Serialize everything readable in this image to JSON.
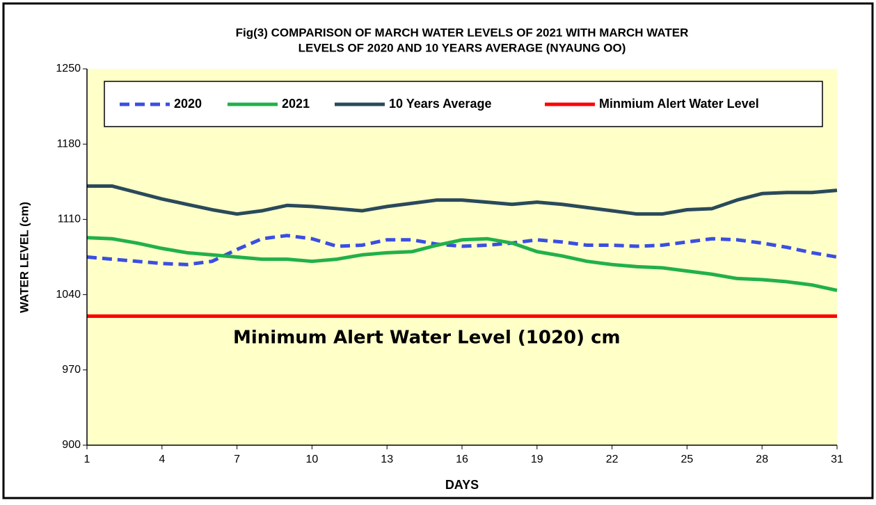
{
  "chart_data": {
    "type": "line",
    "title": [
      "Fig(3)  COMPARISON OF MARCH WATER  LEVELS OF 2021 WITH  MARCH WATER",
      "LEVELS OF 2020  AND 10 YEARS   AVERAGE   (NYAUNG OO)"
    ],
    "x_label": "DAYS",
    "y_label": "WATER LEVEL (cm)",
    "annotation": "Minimum  Alert Water  Level (1020) cm",
    "legend": "top",
    "x": [
      1,
      2,
      3,
      4,
      5,
      6,
      7,
      8,
      9,
      10,
      11,
      12,
      13,
      14,
      15,
      16,
      17,
      18,
      19,
      20,
      21,
      22,
      23,
      24,
      25,
      26,
      27,
      28,
      29,
      30,
      31
    ],
    "xlim": [
      1,
      31
    ],
    "xticks": [
      1,
      4,
      7,
      10,
      13,
      16,
      19,
      22,
      25,
      28,
      31
    ],
    "ylim": [
      900,
      1250
    ],
    "yticks": [
      900,
      970,
      1040,
      1110,
      1180,
      1250
    ],
    "series": [
      {
        "name": "2020",
        "color": "#3a4fe0",
        "style": "dashed",
        "values": [
          1075,
          1073,
          1071,
          1069,
          1068,
          1071,
          1082,
          1092,
          1095,
          1092,
          1085,
          1086,
          1091,
          1091,
          1087,
          1085,
          1086,
          1088,
          1091,
          1089,
          1086,
          1086,
          1085,
          1086,
          1089,
          1092,
          1091,
          1088,
          1084,
          1079,
          1075
        ]
      },
      {
        "name": "2021",
        "color": "#22b04b",
        "style": "solid",
        "values": [
          1093,
          1092,
          1088,
          1083,
          1079,
          1077,
          1075,
          1073,
          1073,
          1071,
          1073,
          1077,
          1079,
          1080,
          1086,
          1091,
          1092,
          1088,
          1080,
          1076,
          1071,
          1068,
          1066,
          1065,
          1062,
          1059,
          1055,
          1054,
          1052,
          1049,
          1044
        ]
      },
      {
        "name": "10 Years Average",
        "color": "#2a4a5a",
        "style": "solid",
        "values": [
          1141,
          1141,
          1135,
          1129,
          1124,
          1119,
          1115,
          1118,
          1123,
          1122,
          1120,
          1118,
          1122,
          1125,
          1128,
          1128,
          1126,
          1124,
          1126,
          1124,
          1121,
          1118,
          1115,
          1115,
          1119,
          1120,
          1128,
          1134,
          1135,
          1135,
          1137
        ]
      },
      {
        "name": "Minmium Alert Water Level",
        "color": "#ff0000",
        "style": "solid",
        "values": [
          1020,
          1020,
          1020,
          1020,
          1020,
          1020,
          1020,
          1020,
          1020,
          1020,
          1020,
          1020,
          1020,
          1020,
          1020,
          1020,
          1020,
          1020,
          1020,
          1020,
          1020,
          1020,
          1020,
          1020,
          1020,
          1020,
          1020,
          1020,
          1020,
          1020,
          1020
        ]
      }
    ]
  }
}
